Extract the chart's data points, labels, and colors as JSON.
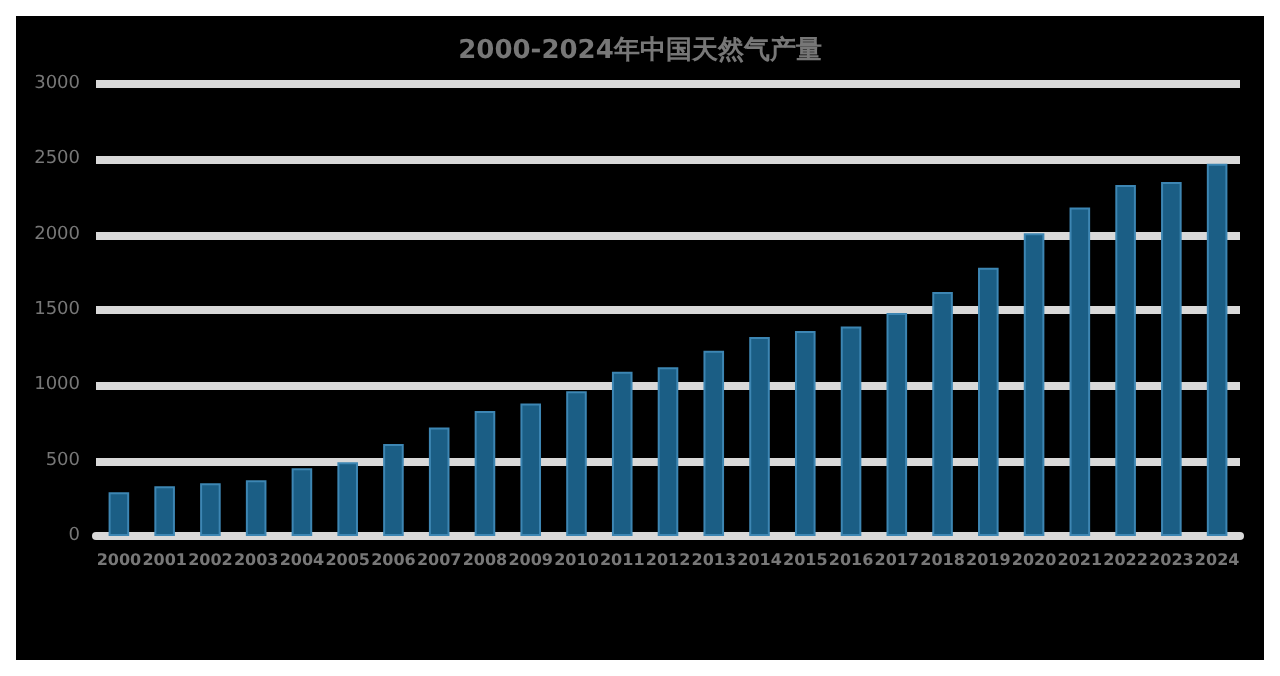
{
  "chart_data": {
    "type": "bar",
    "title": "2000-2024年中国天然气产量",
    "categories": [
      "2000",
      "2001",
      "2002",
      "2003",
      "2004",
      "2005",
      "2006",
      "2007",
      "2008",
      "2009",
      "2010",
      "2011",
      "2012",
      "2013",
      "2014",
      "2015",
      "2016",
      "2017",
      "2018",
      "2019",
      "2020",
      "2021",
      "2022",
      "2023",
      "2024"
    ],
    "values": [
      290,
      330,
      350,
      370,
      450,
      490,
      610,
      720,
      830,
      880,
      960,
      1090,
      1120,
      1230,
      1320,
      1360,
      1390,
      1480,
      1620,
      1780,
      2010,
      2180,
      2330,
      2350,
      2470
    ],
    "color": "#1b5e85",
    "ylim": [
      0,
      3000
    ],
    "yticks": [
      0,
      500,
      1000,
      1500,
      2000,
      2500,
      3000
    ],
    "grid": "y"
  }
}
